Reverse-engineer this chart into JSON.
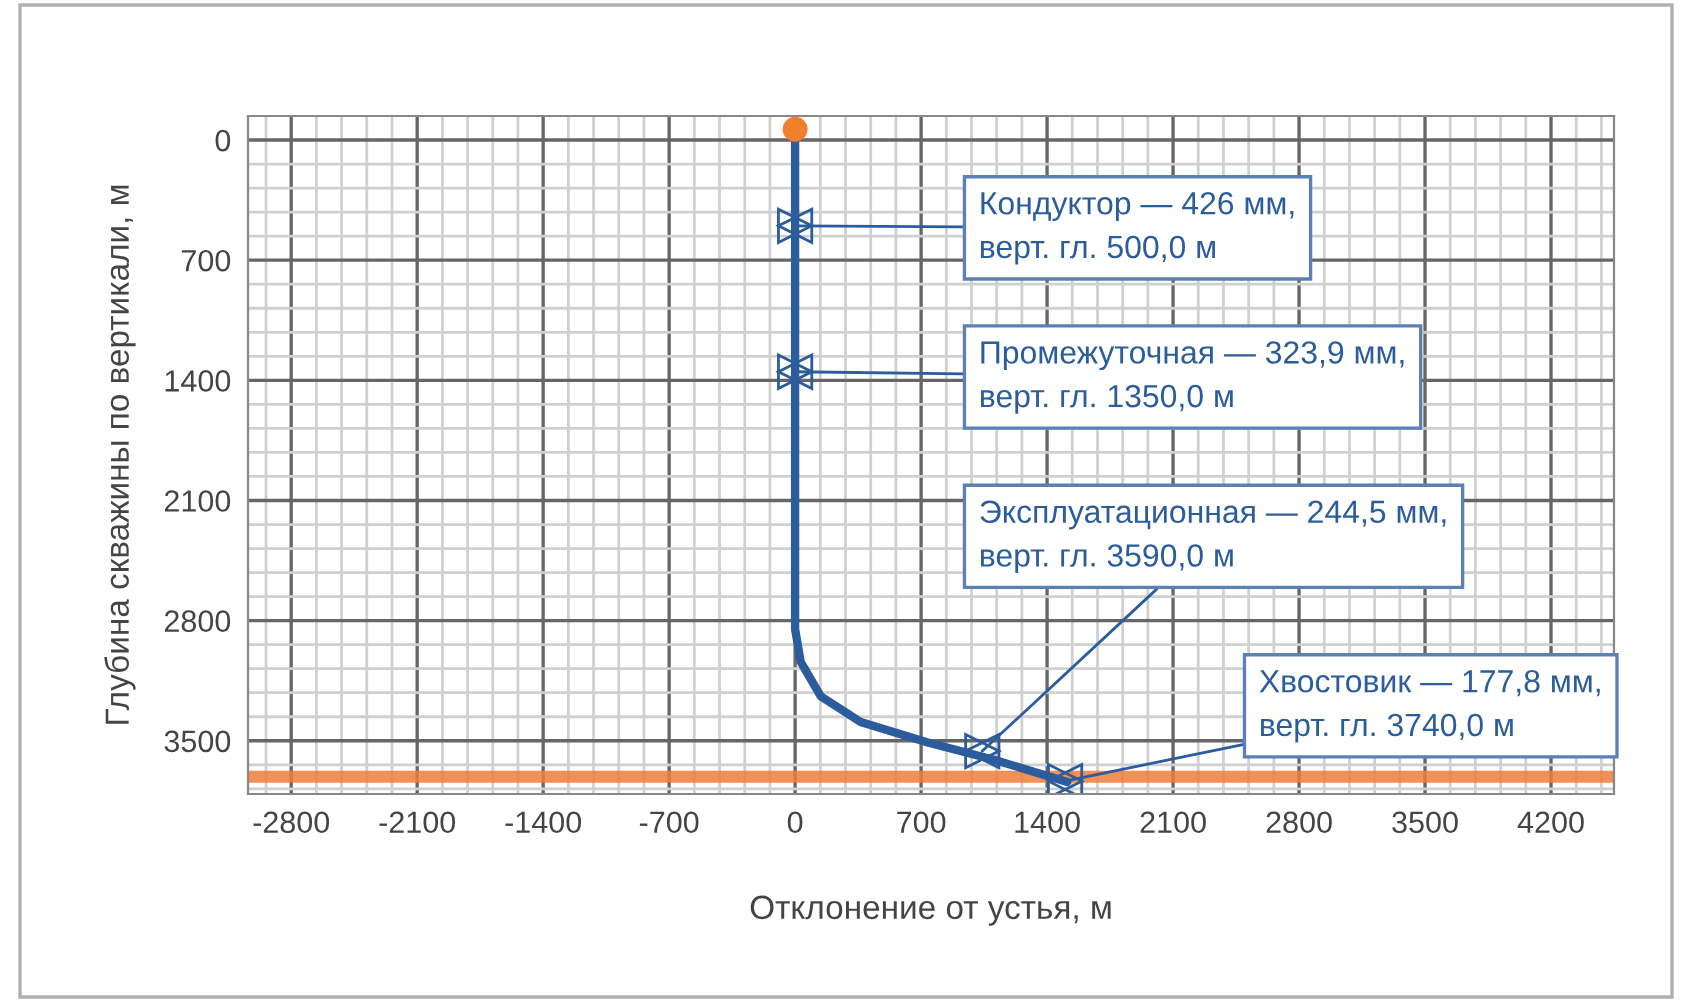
{
  "chart_data": {
    "type": "line",
    "xlabel": "Отклонение от устья, м",
    "ylabel": "Глубина скважины по вертикали, м",
    "x": [
      0,
      0,
      0,
      31,
      142,
      364,
      737,
      1105,
      1512
    ],
    "series": [
      {
        "color": "#2b5c9b",
        "values": [
          0,
          1400,
          2850,
          3040,
          3240,
          3390,
          3510,
          3610,
          3740
        ]
      }
    ],
    "xlim": [
      -3040,
      4550
    ],
    "ylim": [
      3810,
      -140
    ],
    "xticks": [
      -2800,
      -2100,
      -1400,
      -700,
      0,
      700,
      1400,
      2100,
      2800,
      3500,
      4200
    ],
    "yticks": [
      0,
      700,
      1400,
      2100,
      2800,
      3500
    ],
    "grid": true,
    "bands": [
      {
        "axis": "y",
        "from": 3675,
        "to": 3745,
        "color": "#ef7d3a"
      }
    ],
    "annotations": [
      {
        "text": "Кондуктор — 426 мм,\nверт. гл. 500,0 м",
        "x": 0,
        "y": 500
      },
      {
        "text": "Промежуточная — 323,9 мм,\nверт. гл. 1350,0 м",
        "x": 0,
        "y": 1350
      },
      {
        "text": "Эксплуатационная — 244,5 мм,\nверт. гл. 3590,0 м",
        "x": 1040,
        "y": 3560
      },
      {
        "text": "Хвостовик — 177,8 мм,\nверт. гл. 3740,0 м",
        "x": 1500,
        "y": 3735
      }
    ]
  }
}
